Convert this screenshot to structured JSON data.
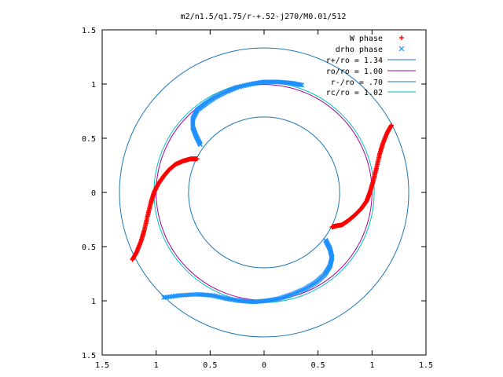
{
  "chart_data": {
    "type": "scatter",
    "title": "m2/n1.5/q1.75/r-+.52-j270/M0.01/512",
    "xlabel": "",
    "ylabel": "",
    "xlim": [
      -1.5,
      1.5
    ],
    "ylim": [
      -1.5,
      1.5
    ],
    "x_tick_values": [
      -1.5,
      -1,
      -0.5,
      0,
      0.5,
      1,
      1.5
    ],
    "x_tick_labels": [
      "1.5",
      "1",
      "0.5",
      "0",
      "0.5",
      "1",
      "1.5"
    ],
    "y_tick_values": [
      -1.5,
      -1,
      -0.5,
      0,
      0.5,
      1,
      1.5
    ],
    "y_tick_labels": [
      "1.5",
      "1",
      "0.5",
      "0",
      "0.5",
      "1",
      "1.5"
    ],
    "grid": false,
    "legend_position": "top-right",
    "circles": [
      {
        "name": "r+/ro = 1.34",
        "r": 1.34,
        "color": "#1f77b4"
      },
      {
        "name": "ro/ro = 1.00",
        "r": 1.0,
        "color": "#a000a0"
      },
      {
        "name": "r-/ro = .70",
        "r": 0.7,
        "color": "#1f77b4"
      },
      {
        "name": "rc/ro = 1.02",
        "r": 1.02,
        "color": "#00c0c0"
      }
    ],
    "series": [
      {
        "name": "W phase",
        "marker": "plus",
        "color": "#ff0000",
        "arms": [
          [
            [
              -1.22,
              -0.62
            ],
            [
              -1.18,
              -0.55
            ],
            [
              -1.14,
              -0.45
            ],
            [
              -1.11,
              -0.35
            ],
            [
              -1.08,
              -0.22
            ],
            [
              -1.05,
              -0.1
            ],
            [
              -1.02,
              0.0
            ],
            [
              -0.98,
              0.08
            ],
            [
              -0.93,
              0.15
            ],
            [
              -0.88,
              0.21
            ],
            [
              -0.82,
              0.26
            ],
            [
              -0.75,
              0.29
            ],
            [
              -0.68,
              0.31
            ],
            [
              -0.62,
              0.31
            ]
          ],
          [
            [
              1.18,
              0.62
            ],
            [
              1.14,
              0.55
            ],
            [
              1.1,
              0.45
            ],
            [
              1.07,
              0.35
            ],
            [
              1.04,
              0.22
            ],
            [
              1.01,
              0.1
            ],
            [
              0.98,
              0.0
            ],
            [
              0.95,
              -0.08
            ],
            [
              0.9,
              -0.15
            ],
            [
              0.84,
              -0.21
            ],
            [
              0.78,
              -0.26
            ],
            [
              0.72,
              -0.3
            ],
            [
              0.66,
              -0.31
            ],
            [
              0.63,
              -0.32
            ]
          ]
        ]
      },
      {
        "name": "drho phase",
        "marker": "x",
        "color": "#1e90ff",
        "arms": [
          [
            [
              -0.59,
              0.44
            ],
            [
              -0.63,
              0.52
            ],
            [
              -0.66,
              0.6
            ],
            [
              -0.66,
              0.68
            ],
            [
              -0.62,
              0.76
            ],
            [
              -0.54,
              0.82
            ],
            [
              -0.45,
              0.88
            ],
            [
              -0.35,
              0.93
            ],
            [
              -0.25,
              0.97
            ],
            [
              -0.12,
              1.0
            ],
            [
              0.0,
              1.02
            ],
            [
              0.12,
              1.02
            ],
            [
              0.25,
              1.01
            ],
            [
              0.35,
              0.99
            ]
          ],
          [
            [
              0.57,
              -0.44
            ],
            [
              0.61,
              -0.52
            ],
            [
              0.63,
              -0.6
            ],
            [
              0.61,
              -0.68
            ],
            [
              0.56,
              -0.76
            ],
            [
              0.48,
              -0.83
            ],
            [
              0.38,
              -0.89
            ],
            [
              0.26,
              -0.94
            ],
            [
              0.14,
              -0.98
            ],
            [
              0.02,
              -1.0
            ],
            [
              -0.1,
              -1.01
            ],
            [
              -0.22,
              -1.0
            ],
            [
              -0.35,
              -0.98
            ],
            [
              -0.48,
              -0.95
            ],
            [
              -0.62,
              -0.94
            ],
            [
              -0.78,
              -0.95
            ],
            [
              -0.93,
              -0.97
            ]
          ]
        ]
      }
    ]
  }
}
